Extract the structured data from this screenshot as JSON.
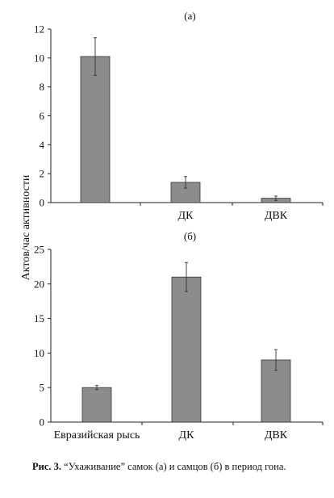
{
  "figure": {
    "y_axis_label": "Актов/час активности",
    "caption_label": "Рис. 3.",
    "caption_text": "“Ухаживание” самок (а) и самцов (б) в период гона."
  },
  "chart_data": [
    {
      "type": "bar",
      "panel_label": "(а)",
      "categories": [
        "",
        "ДК",
        "ДВК"
      ],
      "values": [
        10.1,
        1.4,
        0.3
      ],
      "error": [
        1.3,
        0.4,
        0.15
      ],
      "ylim": [
        0,
        12
      ],
      "yticks": [
        0,
        2,
        4,
        6,
        8,
        10,
        12
      ],
      "ylabel": "Актов/час активности",
      "bar_color": "#8c8c8c",
      "grid": false
    },
    {
      "type": "bar",
      "panel_label": "(б)",
      "categories": [
        "Евразийская рысь",
        "ДК",
        "ДВК"
      ],
      "values": [
        5.0,
        21.0,
        9.0
      ],
      "error": [
        0.3,
        2.1,
        1.5
      ],
      "ylim": [
        0,
        25
      ],
      "yticks": [
        0,
        5,
        10,
        15,
        20,
        25
      ],
      "ylabel": "Актов/час активности",
      "bar_color": "#8c8c8c",
      "grid": false
    }
  ]
}
